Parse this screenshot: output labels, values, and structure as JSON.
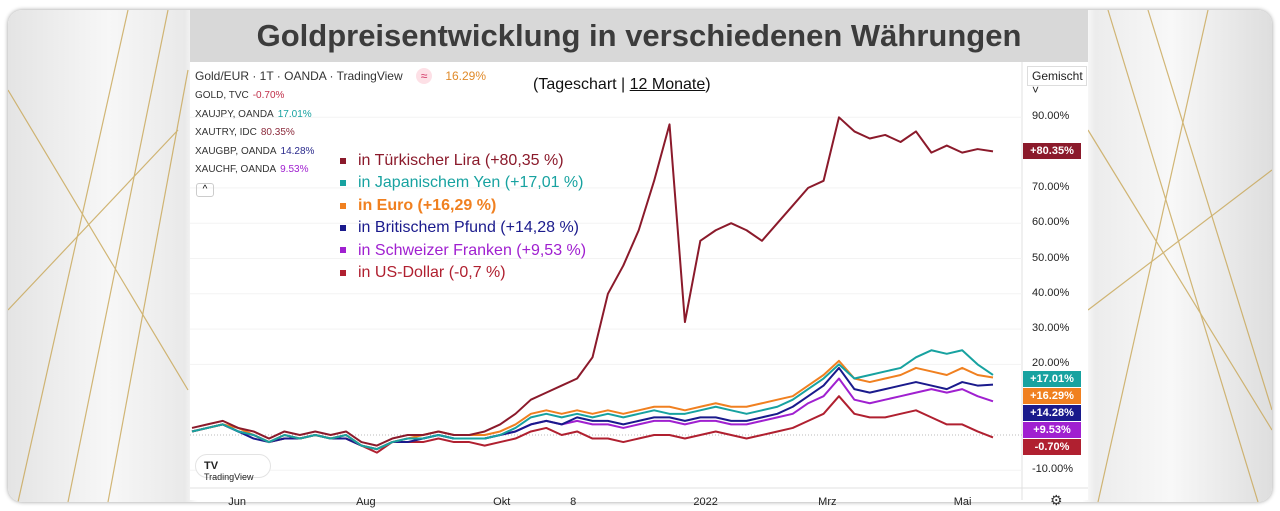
{
  "title": "Goldpreisentwicklung in verschiedenen Währungen",
  "subtitle_prefix": "(Tageschart | ",
  "subtitle_link": "12 Monate",
  "subtitle_suffix": ")",
  "tv_legend": {
    "main": {
      "symbol": "Gold/EUR · 1T · OANDA · TradingView",
      "icon": "approx-icon",
      "value": "16.29%"
    },
    "rows": [
      {
        "symbol": "GOLD, TVC",
        "value": "-0.70%",
        "color": "#c0304a"
      },
      {
        "symbol": "XAUJPY, OANDA",
        "value": "17.01%",
        "color": "#17a2a0"
      },
      {
        "symbol": "XAUTRY, IDC",
        "value": "80.35%",
        "color": "#8b2a3b"
      },
      {
        "symbol": "XAUGBP, OANDA",
        "value": "14.28%",
        "color": "#2a2a8c"
      },
      {
        "symbol": "XAUCHF, OANDA",
        "value": "9.53%",
        "color": "#a020d0"
      }
    ],
    "collapse": "^"
  },
  "scale_mode": "Gemischt",
  "branding": "TradingView",
  "chart_data": {
    "type": "line",
    "title": "Goldpreisentwicklung in verschiedenen Währungen",
    "xlabel": "",
    "ylabel": "",
    "x_ticks": [
      {
        "label": "Jun",
        "week": 3
      },
      {
        "label": "Aug",
        "week": 11.3
      },
      {
        "label": "Okt",
        "week": 20.2
      },
      {
        "label": "8",
        "week": 25.2
      },
      {
        "label": "2022",
        "week": 33.2
      },
      {
        "label": "Mrz",
        "week": 41.3
      },
      {
        "label": "Mai",
        "week": 50.1
      }
    ],
    "y_ticks": [
      "90.00%",
      "70.00%",
      "60.00%",
      "50.00%",
      "40.00%",
      "30.00%",
      "20.00%",
      "-10.00%"
    ],
    "y_tick_values": [
      90,
      70,
      60,
      50,
      40,
      30,
      20,
      -10
    ],
    "ylim": [
      -10,
      90
    ],
    "x_unit": "weeks since mid-May 2021",
    "series": [
      {
        "name": "in Türkischer Lira (+80,35 %)",
        "color": "#8b1a2b",
        "tag": "+80.35%",
        "last": 80.35,
        "values": [
          2,
          3,
          4,
          2,
          1,
          -1,
          1,
          0,
          1,
          0,
          1,
          -2,
          -3,
          -1,
          0,
          0,
          1,
          0,
          0,
          1,
          3,
          6,
          10,
          12,
          14,
          16,
          22,
          40,
          48,
          58,
          72,
          88,
          32,
          55,
          58,
          60,
          58,
          55,
          60,
          65,
          70,
          72,
          90,
          86,
          84,
          85,
          83,
          86,
          80,
          82,
          80,
          81,
          80.35
        ]
      },
      {
        "name": "in Japanischem Yen (+17,01 %)",
        "color": "#17a2a0",
        "tag": "+17.01%",
        "last": 17.01,
        "values": [
          1,
          2,
          3,
          1,
          0,
          -2,
          0,
          -1,
          0,
          -1,
          0,
          -3,
          -4,
          -2,
          -1,
          -1,
          0,
          -1,
          -1,
          -1,
          0,
          2,
          5,
          6,
          5,
          6,
          5,
          6,
          5,
          6,
          7,
          6,
          6,
          7,
          8,
          7,
          6,
          7,
          8,
          10,
          13,
          16,
          20,
          16,
          17,
          18,
          19,
          22,
          24,
          23,
          24,
          20,
          17.01
        ]
      },
      {
        "name": "in Euro (+16,29 %)",
        "color": "#f08020",
        "tag": "+16.29%",
        "last": 16.29,
        "values": [
          1,
          2,
          3,
          2,
          0,
          -2,
          0,
          -1,
          0,
          -1,
          0,
          -3,
          -4,
          -2,
          -1,
          0,
          1,
          0,
          0,
          0,
          1,
          3,
          6,
          7,
          6,
          7,
          6,
          7,
          6,
          7,
          8,
          8,
          7,
          8,
          9,
          8,
          8,
          9,
          10,
          11,
          14,
          17,
          21,
          16,
          15,
          16,
          17,
          19,
          18,
          17,
          19,
          17,
          16.29
        ]
      },
      {
        "name": "in Britischem Pfund (+14,28 %)",
        "color": "#1a1a8c",
        "tag": "+14.28%",
        "last": 14.28,
        "values": [
          1,
          2,
          3,
          1,
          -1,
          -2,
          -1,
          -1,
          0,
          -1,
          -1,
          -3,
          -4,
          -2,
          -2,
          -1,
          0,
          -1,
          -1,
          -1,
          0,
          1,
          3,
          4,
          3,
          5,
          4,
          4,
          3,
          4,
          5,
          5,
          4,
          5,
          5,
          4,
          4,
          5,
          6,
          8,
          11,
          14,
          19,
          13,
          12,
          13,
          14,
          15,
          14,
          13,
          15,
          14,
          14.28
        ]
      },
      {
        "name": "in Schweizer Franken (+9,53 %)",
        "color": "#a020d0",
        "tag": "+9.53%",
        "last": 9.53,
        "values": [
          1,
          2,
          3,
          1,
          0,
          -2,
          0,
          -1,
          0,
          -1,
          0,
          -3,
          -4,
          -2,
          -1,
          -1,
          0,
          -1,
          -1,
          -1,
          0,
          1,
          3,
          4,
          3,
          4,
          3,
          3,
          2,
          3,
          4,
          4,
          3,
          4,
          4,
          3,
          3,
          4,
          5,
          6,
          9,
          11,
          16,
          10,
          9,
          10,
          11,
          12,
          13,
          12,
          13,
          11,
          9.53
        ]
      },
      {
        "name": "in US-Dollar (-0,7 %)",
        "color": "#b02030",
        "tag": "-0.70%",
        "last": -0.7,
        "values": [
          1,
          2,
          3,
          1,
          0,
          -2,
          -1,
          -1,
          0,
          -1,
          -1,
          -3,
          -5,
          -2,
          -2,
          -2,
          -1,
          -2,
          -2,
          -3,
          -2,
          -1,
          1,
          2,
          0,
          1,
          -1,
          -1,
          -2,
          -1,
          0,
          0,
          -1,
          0,
          1,
          0,
          -1,
          0,
          1,
          2,
          4,
          6,
          11,
          6,
          5,
          5,
          6,
          7,
          5,
          3,
          3,
          1,
          -0.7
        ]
      }
    ]
  }
}
